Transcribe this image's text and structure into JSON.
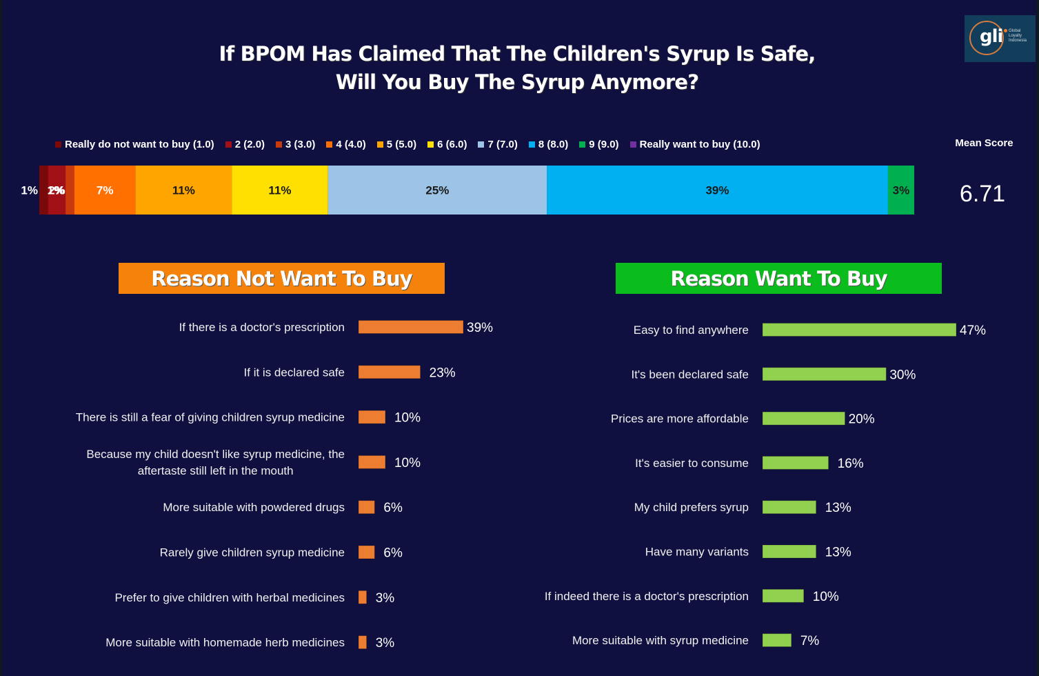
{
  "title": {
    "line1": "If BPOM Has Claimed That The Children's Syrup Is Safe,",
    "line2": "Will You Buy The Syrup Anymore?"
  },
  "logo": {
    "mark": "gli",
    "tagline": [
      "Global",
      "Loyalty",
      "Indonesia"
    ]
  },
  "mean_score": {
    "label": "Mean Score",
    "value": "6.71"
  },
  "chart_data": [
    {
      "type": "bar",
      "orientation": "horizontal-stacked-100",
      "title": "If BPOM Has Claimed That The Children's Syrup Is Safe, Will You Buy The Syrup Anymore?",
      "legend_position": "top",
      "series": [
        {
          "name": "Really do not want to buy (1.0)",
          "value": 1,
          "label": "1%",
          "color": "#7a0a0a",
          "label_color": "#ffffff"
        },
        {
          "name": "2 (2.0)",
          "value": 2,
          "label": "2%",
          "color": "#a01016",
          "label_color": "#ffffff"
        },
        {
          "name": "3 (3.0)",
          "value": 1,
          "label": "1%",
          "color": "#c83a0c",
          "label_color": "#ffffff"
        },
        {
          "name": "4 (4.0)",
          "value": 7,
          "label": "7%",
          "color": "#ff7000",
          "label_color": "#ffffff"
        },
        {
          "name": "5 (5.0)",
          "value": 11,
          "label": "11%",
          "color": "#ffa500",
          "label_color": "#1a1a1a"
        },
        {
          "name": "6 (6.0)",
          "value": 11,
          "label": "11%",
          "color": "#ffe000",
          "label_color": "#1a1a1a"
        },
        {
          "name": "7 (7.0)",
          "value": 25,
          "label": "25%",
          "color": "#9dc3e6",
          "label_color": "#1a1a1a"
        },
        {
          "name": "8 (8.0)",
          "value": 39,
          "label": "39%",
          "color": "#00b0f0",
          "label_color": "#1a1a1a"
        },
        {
          "name": "9 (9.0)",
          "value": 3,
          "label": "3%",
          "color": "#00b050",
          "label_color": "#1a1a1a"
        },
        {
          "name": "Really want to buy (10.0)",
          "value": 0,
          "label": "",
          "color": "#7030a0",
          "label_color": "#ffffff"
        }
      ],
      "xlim": [
        0,
        100
      ]
    },
    {
      "type": "bar",
      "orientation": "horizontal",
      "title": "Reason Not Want To Buy",
      "color": "#ed7d31",
      "categories": [
        [
          "If there is a doctor's prescription"
        ],
        [
          "If it is declared safe"
        ],
        [
          "There is still a fear of giving children syrup medicine"
        ],
        [
          "Because my child doesn't like syrup medicine,  the",
          "aftertaste still left in the mouth"
        ],
        [
          "More suitable with powdered drugs"
        ],
        [
          "Rarely give children syrup medicine"
        ],
        [
          "Prefer to give children with herbal medicines"
        ],
        [
          "More suitable with homemade herb medicines"
        ]
      ],
      "values": [
        39,
        23,
        10,
        10,
        6,
        6,
        3,
        3
      ],
      "value_labels": [
        "39%",
        "23%",
        "10%",
        "10%",
        "6%",
        "6%",
        "3%",
        "3%"
      ],
      "xlim": [
        0,
        39
      ]
    },
    {
      "type": "bar",
      "orientation": "horizontal",
      "title": "Reason Want To Buy",
      "color": "#92d050",
      "categories": [
        [
          "Easy to find anywhere"
        ],
        [
          "It's been declared safe"
        ],
        [
          "Prices are more affordable"
        ],
        [
          "It's easier to consume"
        ],
        [
          "My child prefers syrup"
        ],
        [
          "Have many variants"
        ],
        [
          "If indeed there is a doctor's prescription"
        ],
        [
          "More suitable with syrup medicine"
        ]
      ],
      "values": [
        47,
        30,
        20,
        16,
        13,
        13,
        10,
        7
      ],
      "value_labels": [
        "47%",
        "30%",
        "20%",
        "16%",
        "13%",
        "13%",
        "10%",
        "7%"
      ],
      "xlim": [
        0,
        47
      ]
    }
  ]
}
